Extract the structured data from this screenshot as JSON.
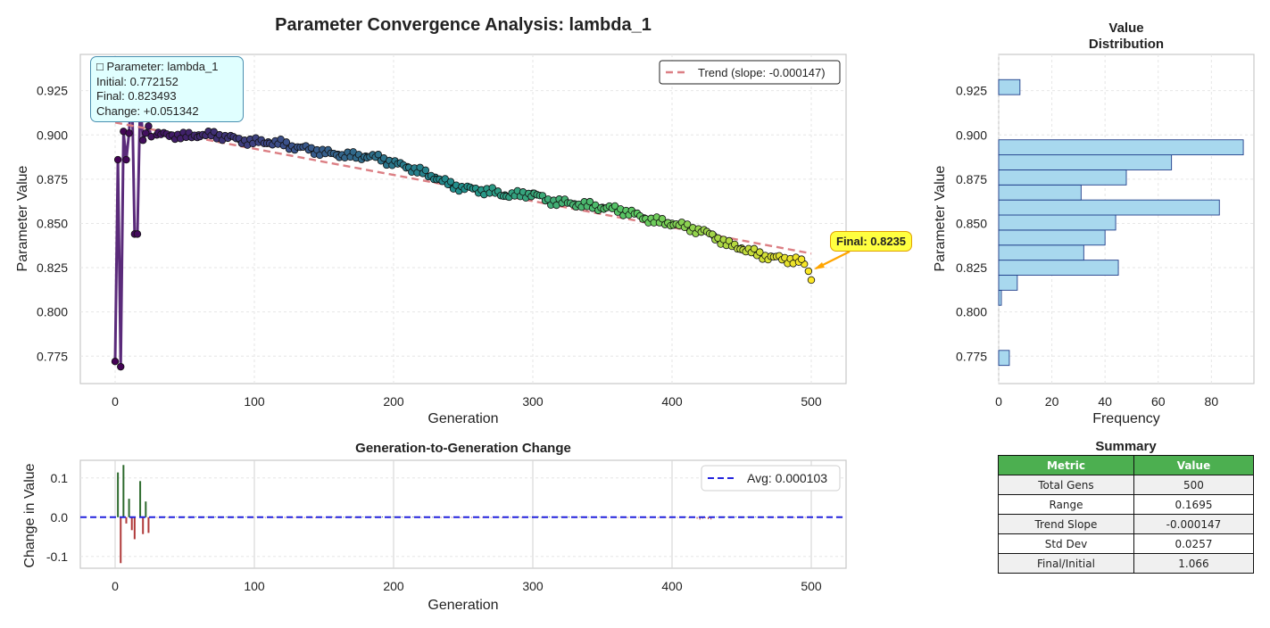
{
  "title": "Parameter Convergence Analysis: lambda_1",
  "main_plot": {
    "xlabel": "Generation",
    "ylabel": "Parameter Value",
    "xticks": [
      "0",
      "100",
      "200",
      "300",
      "400",
      "500"
    ],
    "yticks": [
      "0.775",
      "0.800",
      "0.825",
      "0.850",
      "0.875",
      "0.900",
      "0.925"
    ],
    "legend_label": "Trend (slope: -0.000147)",
    "info_lines": [
      "□ Parameter: lambda_1",
      "Initial: 0.772152",
      "Final: 0.823493",
      "Change: +0.051342"
    ],
    "final_annotation": "Final: 0.8235"
  },
  "hist_plot": {
    "title_line1": "Value",
    "title_line2": "Distribution",
    "xlabel": "Frequency",
    "ylabel": "Parameter Value",
    "xticks": [
      "0",
      "20",
      "40",
      "60",
      "80"
    ],
    "yticks": [
      "0.775",
      "0.800",
      "0.825",
      "0.850",
      "0.875",
      "0.900",
      "0.925"
    ]
  },
  "change_plot": {
    "title": "Generation-to-Generation Change",
    "xlabel": "Generation",
    "ylabel": "Change in Value",
    "xticks": [
      "0",
      "100",
      "200",
      "300",
      "400",
      "500"
    ],
    "yticks": [
      "0.1",
      "0.0",
      "-0.1"
    ],
    "legend_label": "Avg: 0.000103"
  },
  "summary": {
    "title": "Summary",
    "headers": [
      "Metric",
      "Value"
    ],
    "rows": [
      [
        "Total Gens",
        "500"
      ],
      [
        "Range",
        "0.1695"
      ],
      [
        "Trend Slope",
        "-0.000147"
      ],
      [
        "Std Dev",
        "0.0257"
      ],
      [
        "Final/Initial",
        "1.066"
      ]
    ]
  },
  "colors": {
    "trend": "#dc7f84",
    "hist_fill": "#a8d8ee",
    "hist_edge": "#1f3d8a",
    "positive_change": "#2e6b2e",
    "negative_change": "#b03a3a",
    "avg_line": "#2222dd",
    "header_green": "#4caf50",
    "final_arrow": "#ffa500"
  },
  "chart_data": [
    {
      "type": "scatter",
      "title": "Parameter Convergence Analysis: lambda_1",
      "xlabel": "Generation",
      "ylabel": "Parameter Value",
      "xlim": [
        -25,
        525
      ],
      "ylim": [
        0.7595,
        0.9455
      ],
      "series": [
        {
          "name": "Trend (slope: -0.000147)",
          "style": "dashed",
          "x": [
            0,
            500
          ],
          "y": [
            0.907,
            0.833
          ]
        }
      ],
      "points": {
        "x": [
          0,
          2,
          4,
          6,
          8,
          10,
          12,
          14,
          16,
          18,
          20,
          22,
          24,
          26,
          30,
          40,
          50,
          60,
          70,
          80,
          90,
          100,
          110,
          120,
          130,
          140,
          150,
          160,
          170,
          180,
          190,
          200,
          210,
          220,
          230,
          240,
          250,
          260,
          270,
          280,
          290,
          300,
          310,
          320,
          330,
          340,
          350,
          360,
          370,
          380,
          390,
          400,
          410,
          420,
          430,
          440,
          450,
          460,
          470,
          480,
          490,
          495,
          498,
          500
        ],
        "y": [
          0.772,
          0.886,
          0.769,
          0.902,
          0.886,
          0.901,
          0.93,
          0.844,
          0.844,
          0.92,
          0.897,
          0.901,
          0.905,
          0.899,
          0.9,
          0.9,
          0.899,
          0.9,
          0.9,
          0.899,
          0.897,
          0.896,
          0.896,
          0.895,
          0.893,
          0.892,
          0.89,
          0.889,
          0.888,
          0.888,
          0.887,
          0.884,
          0.882,
          0.879,
          0.876,
          0.872,
          0.87,
          0.869,
          0.868,
          0.866,
          0.866,
          0.867,
          0.863,
          0.862,
          0.861,
          0.86,
          0.859,
          0.858,
          0.856,
          0.853,
          0.851,
          0.85,
          0.848,
          0.846,
          0.843,
          0.838,
          0.836,
          0.833,
          0.831,
          0.83,
          0.829,
          0.827,
          0.823,
          0.818
        ]
      },
      "final_value": 0.8235
    },
    {
      "type": "bar",
      "orientation": "horizontal",
      "title": "Value Distribution",
      "xlabel": "Frequency",
      "ylabel": "Parameter Value",
      "xlim": [
        0,
        96
      ],
      "bin_centers": [
        0.774,
        0.7825,
        0.791,
        0.7995,
        0.808,
        0.8165,
        0.825,
        0.8335,
        0.842,
        0.8505,
        0.859,
        0.8675,
        0.876,
        0.8845,
        0.893,
        0.9015,
        0.91,
        0.9185,
        0.927
      ],
      "values": [
        4,
        0,
        0,
        0,
        1,
        7,
        45,
        32,
        40,
        44,
        83,
        31,
        48,
        65,
        92,
        0,
        0,
        0,
        8
      ]
    },
    {
      "type": "bar",
      "title": "Generation-to-Generation Change",
      "xlabel": "Generation",
      "ylabel": "Change in Value",
      "xlim": [
        -25,
        525
      ],
      "ylim": [
        -0.13,
        0.145
      ],
      "x": [
        2,
        4,
        6,
        8,
        10,
        12,
        14,
        16,
        18,
        20,
        22,
        24
      ],
      "values": [
        0.114,
        -0.117,
        0.133,
        -0.016,
        0.047,
        -0.033,
        -0.056,
        0.0,
        0.092,
        -0.043,
        0.04,
        -0.04
      ],
      "average_line": {
        "label": "Avg: 0.000103",
        "value": 0.000103
      }
    }
  ]
}
